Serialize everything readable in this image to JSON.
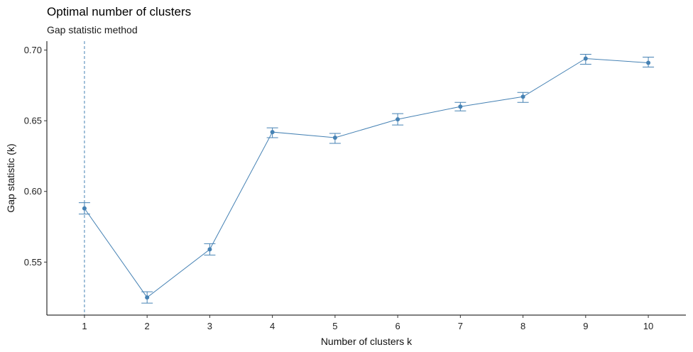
{
  "chart_data": {
    "type": "line",
    "title": "Optimal number of clusters",
    "subtitle": "Gap statistic method",
    "xlabel": "Number of clusters k",
    "ylabel": "Gap statistic (k)",
    "x": [
      1,
      2,
      3,
      4,
      5,
      6,
      7,
      8,
      9,
      10
    ],
    "x_tick_labels": [
      "1",
      "2",
      "3",
      "4",
      "5",
      "6",
      "7",
      "8",
      "9",
      "10"
    ],
    "series": [
      {
        "values": [
          0.588,
          0.525,
          0.559,
          0.642,
          0.638,
          0.651,
          0.66,
          0.667,
          0.694,
          0.691
        ],
        "error_low": [
          0.584,
          0.521,
          0.555,
          0.638,
          0.634,
          0.647,
          0.657,
          0.663,
          0.69,
          0.688
        ],
        "error_high": [
          0.592,
          0.529,
          0.563,
          0.645,
          0.641,
          0.655,
          0.663,
          0.67,
          0.697,
          0.695
        ]
      }
    ],
    "y_ticks": [
      0.55,
      0.6,
      0.65,
      0.7
    ],
    "y_tick_labels": [
      "0.55",
      "0.60",
      "0.65",
      "0.70"
    ],
    "ylim": [
      0.5125,
      0.7063
    ],
    "xlim": [
      0.4,
      10.6
    ],
    "optimal_k": 1,
    "grid": false,
    "colors": {
      "line": "#4682B4",
      "axis": "#000000"
    }
  }
}
